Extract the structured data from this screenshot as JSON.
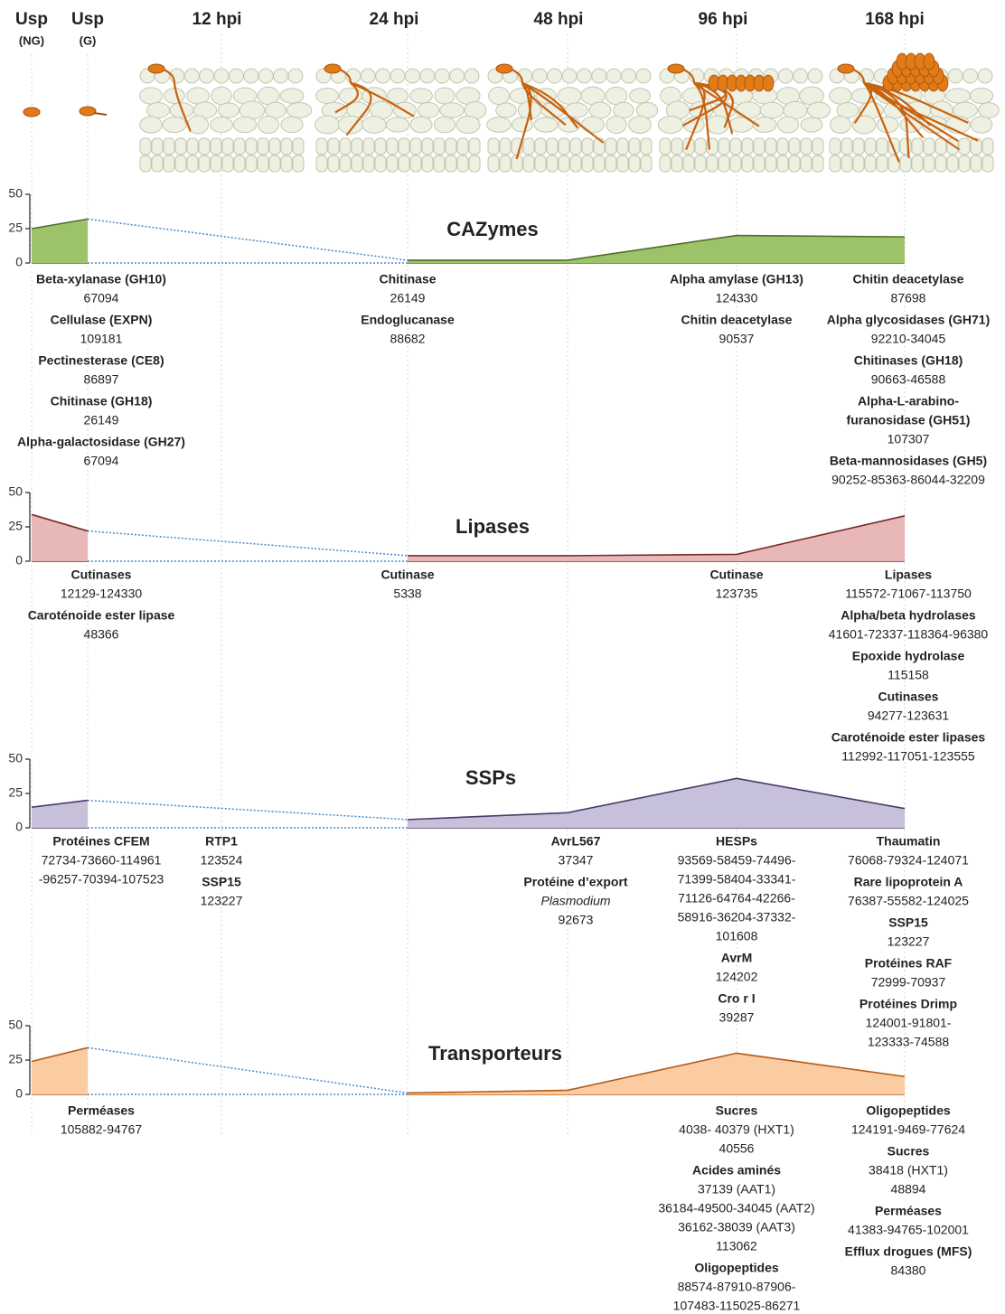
{
  "columns": [
    {
      "label": "Usp",
      "sub": "(NG)"
    },
    {
      "label": "Usp",
      "sub": "(G)"
    },
    {
      "label": "12 hpi"
    },
    {
      "label": "24 hpi"
    },
    {
      "label": "48 hpi"
    },
    {
      "label": "96 hpi"
    },
    {
      "label": "168 hpi"
    }
  ],
  "chart_data": [
    {
      "type": "area",
      "title": "CAZymes",
      "values": [
        25,
        32,
        null,
        2,
        2,
        20,
        19
      ],
      "color": "#9dc36a",
      "line_color": "#4e6e2a",
      "ylim": [
        0,
        50
      ],
      "yticks": [
        0,
        25,
        50
      ],
      "annotations": [
        null,
        [
          {
            "name": [
              "Beta-xylanase (GH10)"
            ],
            "ids": [
              "67094"
            ]
          },
          {
            "name": [
              "Cellulase (EXPN)"
            ],
            "ids": [
              "109181"
            ]
          },
          {
            "name": [
              "Pectinesterase (CE8)"
            ],
            "ids": [
              "86897"
            ]
          },
          {
            "name": [
              "Chitinase (GH18)"
            ],
            "ids": [
              "26149"
            ]
          },
          {
            "name": [
              "Alpha-galactosidase (GH27)"
            ],
            "ids": [
              "67094"
            ]
          }
        ],
        null,
        [
          {
            "name": [
              "Chitinase"
            ],
            "ids": [
              "26149"
            ]
          },
          {
            "name": [
              "Endoglucanase"
            ],
            "ids": [
              "88682"
            ]
          }
        ],
        null,
        [
          {
            "name": [
              "Alpha amylase (GH13)"
            ],
            "ids": [
              "124330"
            ]
          },
          {
            "name": [
              "Chitin deacetylase"
            ],
            "ids": [
              "90537"
            ]
          }
        ],
        [
          {
            "name": [
              "Chitin deacetylase"
            ],
            "ids": [
              "87698"
            ]
          },
          {
            "name": [
              "Alpha glycosidases (GH71)"
            ],
            "ids": [
              "92210-34045"
            ]
          },
          {
            "name": [
              "Chitinases (GH18)"
            ],
            "ids": [
              "90663-46588"
            ]
          },
          {
            "name": [
              "Alpha-L-arabino-",
              "furanosidase (GH51)"
            ],
            "ids": [
              "107307"
            ]
          },
          {
            "name": [
              "Beta-mannosidases (GH5)"
            ],
            "ids": [
              "90252-85363-86044-32209"
            ]
          }
        ]
      ]
    },
    {
      "type": "area",
      "title": "Lipases",
      "values": [
        34,
        22,
        null,
        4,
        4,
        5,
        33
      ],
      "color": "#e8b8b8",
      "line_color": "#7a2a2a",
      "ylim": [
        0,
        50
      ],
      "yticks": [
        0,
        25,
        50
      ],
      "annotations": [
        null,
        [
          {
            "name": [
              "Cutinases"
            ],
            "ids": [
              "12129-124330"
            ]
          },
          {
            "name": [
              "Caroténoide ester lipase"
            ],
            "ids": [
              "48366"
            ]
          }
        ],
        null,
        [
          {
            "name": [
              "Cutinase"
            ],
            "ids": [
              "5338"
            ]
          }
        ],
        null,
        [
          {
            "name": [
              "Cutinase"
            ],
            "ids": [
              "123735"
            ]
          }
        ],
        [
          {
            "name": [
              "Lipases"
            ],
            "ids": [
              "115572-71067-113750"
            ]
          },
          {
            "name": [
              "Alpha/beta hydrolases"
            ],
            "ids": [
              "41601-72337-118364-96380"
            ]
          },
          {
            "name": [
              "Epoxide hydrolase"
            ],
            "ids": [
              "115158"
            ]
          },
          {
            "name": [
              "Cutinases"
            ],
            "ids": [
              "94277-123631"
            ]
          },
          {
            "name": [
              "Caroténoide ester lipases"
            ],
            "ids": [
              "112992-117051-123555"
            ]
          }
        ]
      ]
    },
    {
      "type": "area",
      "title": "SSPs",
      "values": [
        15,
        20,
        null,
        6,
        11,
        36,
        14
      ],
      "color": "#c6c0da",
      "line_color": "#4b3a6b",
      "ylim": [
        0,
        50
      ],
      "yticks": [
        0,
        25,
        50
      ],
      "annotations": [
        null,
        [
          {
            "name": [
              "Protéines CFEM"
            ],
            "ids": [
              "72734-73660-114961",
              "-96257-70394-107523"
            ]
          }
        ],
        [
          {
            "name": [
              "RTP1"
            ],
            "ids": [
              "123524"
            ]
          },
          {
            "name": [
              "SSP15"
            ],
            "ids": [
              "123227"
            ]
          }
        ],
        null,
        [
          {
            "name": [
              "AvrL567"
            ],
            "ids": [
              "37347"
            ]
          },
          {
            "name": [
              "Protéine d’export"
            ],
            "name_italic": [
              "Plasmodium"
            ],
            "ids": [
              "92673"
            ]
          }
        ],
        [
          {
            "name": [
              "HESPs"
            ],
            "ids": [
              "93569-58459-74496-",
              "71399-58404-33341-",
              "71126-64764-42266-",
              "58916-36204-37332-",
              "101608"
            ]
          },
          {
            "name": [
              "AvrM"
            ],
            "ids": [
              "124202"
            ]
          },
          {
            "name": [
              "Cro r I"
            ],
            "ids": [
              "39287"
            ]
          }
        ],
        [
          {
            "name": [
              "Thaumatin"
            ],
            "ids": [
              "76068-79324-124071"
            ]
          },
          {
            "name": [
              "Rare lipoprotein A"
            ],
            "ids": [
              "76387-55582-124025"
            ]
          },
          {
            "name": [
              "SSP15"
            ],
            "ids": [
              "123227"
            ]
          },
          {
            "name": [
              "Protéines RAF"
            ],
            "ids": [
              "72999-70937"
            ]
          },
          {
            "name": [
              "Protéines Drimp"
            ],
            "ids": [
              "124001-91801-",
              "123333-74588"
            ]
          }
        ]
      ]
    },
    {
      "type": "area",
      "title": "Transporteurs",
      "values": [
        24,
        34,
        null,
        1,
        3,
        30,
        13
      ],
      "color": "#fbcba2",
      "line_color": "#b55a14",
      "ylim": [
        0,
        50
      ],
      "yticks": [
        0,
        25,
        50
      ],
      "annotations": [
        null,
        [
          {
            "name": [
              "Perméases"
            ],
            "ids": [
              "105882-94767"
            ]
          }
        ],
        null,
        null,
        null,
        [
          {
            "name": [
              "Sucres"
            ],
            "ids": [
              "4038- 40379 (HXT1)",
              "40556"
            ]
          },
          {
            "name": [
              "Acides aminés"
            ],
            "ids": [
              "37139 (AAT1)",
              "36184-49500-34045 (AAT2)",
              "36162-38039  (AAT3)",
              "113062"
            ]
          },
          {
            "name": [
              "Oligopeptides"
            ],
            "ids": [
              "88574-87910-87906-",
              "107483-115025-86271"
            ]
          }
        ],
        [
          {
            "name": [
              "Oligopeptides"
            ],
            "ids": [
              "124191-9469-77624"
            ]
          },
          {
            "name": [
              "Sucres"
            ],
            "ids": [
              "38418 (HXT1)",
              "48894"
            ]
          },
          {
            "name": [
              "Perméases"
            ],
            "ids": [
              "41383-94765-102001"
            ]
          },
          {
            "name": [
              "Efflux drogues (MFS)"
            ],
            "ids": [
              "84380"
            ]
          }
        ]
      ]
    }
  ]
}
